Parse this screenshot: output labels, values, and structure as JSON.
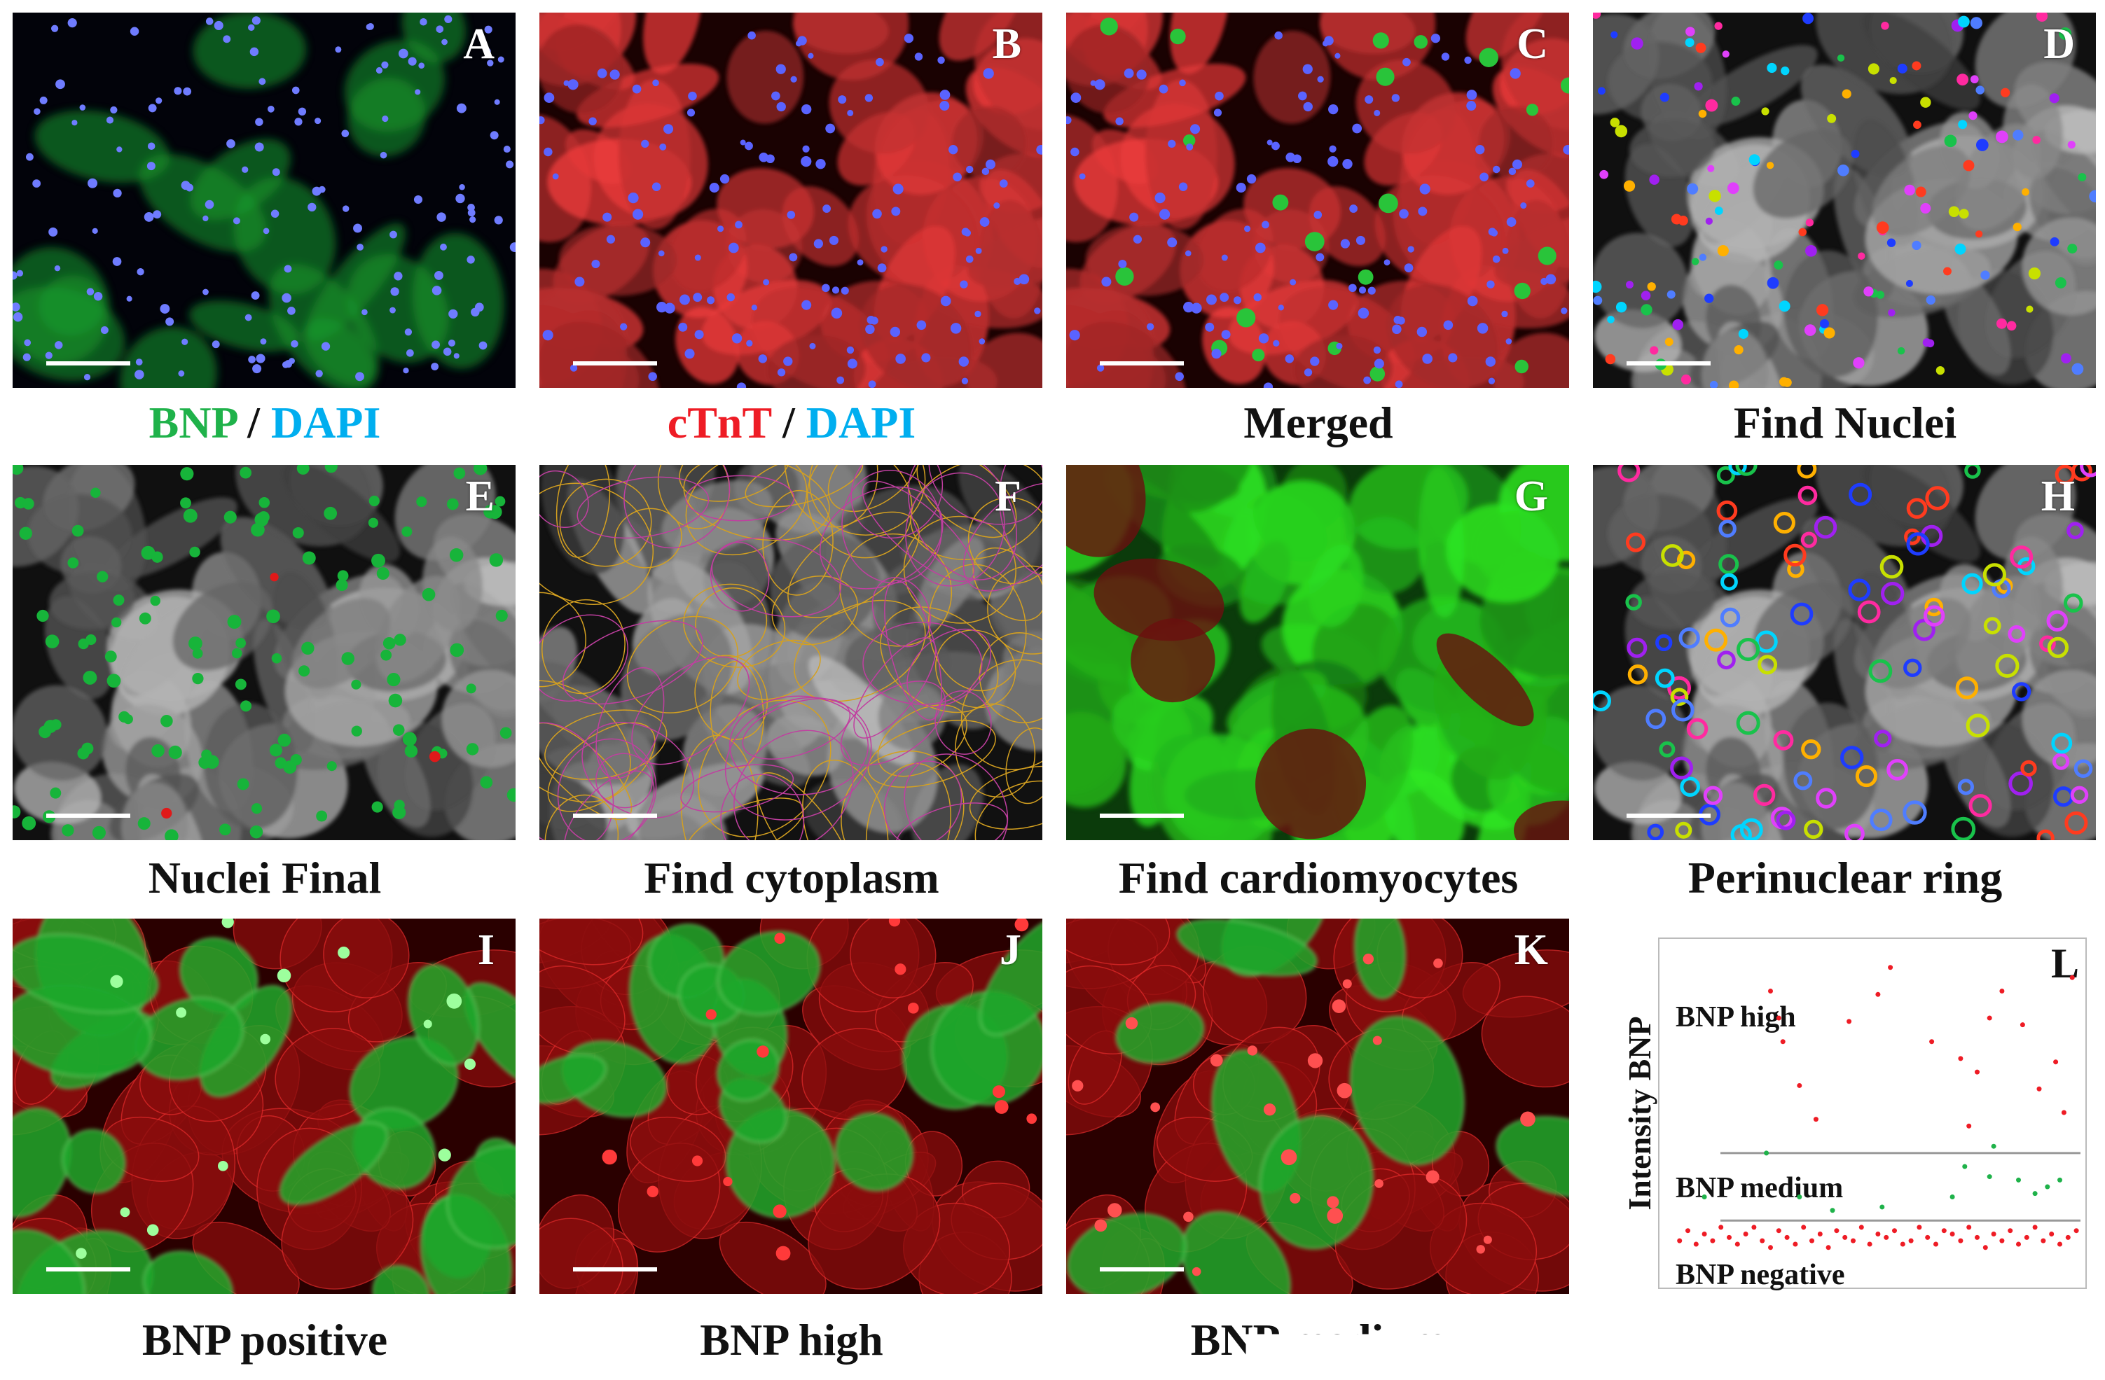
{
  "panels": [
    {
      "letter": "A",
      "caption_parts": [
        {
          "text": "BNP",
          "color": "#1fb24a"
        },
        {
          "text": " / ",
          "color": "#111111"
        },
        {
          "text": "DAPI",
          "color": "#00aeef"
        }
      ],
      "style": "bnp-dapi"
    },
    {
      "letter": "B",
      "caption_parts": [
        {
          "text": "cTnT",
          "color": "#ee1c25"
        },
        {
          "text": " / ",
          "color": "#111111"
        },
        {
          "text": "DAPI",
          "color": "#00aeef"
        }
      ],
      "style": "ctnt-dapi"
    },
    {
      "letter": "C",
      "caption_parts": [
        {
          "text": "Merged",
          "color": "#111111"
        }
      ],
      "style": "merged"
    },
    {
      "letter": "D",
      "caption_parts": [
        {
          "text": "Find Nuclei",
          "color": "#111111"
        }
      ],
      "style": "find-nuclei"
    },
    {
      "letter": "E",
      "caption_parts": [
        {
          "text": "Nuclei Final",
          "color": "#111111"
        }
      ],
      "style": "nuclei-final"
    },
    {
      "letter": "F",
      "caption_parts": [
        {
          "text": "Find cytoplasm",
          "color": "#111111"
        }
      ],
      "style": "find-cytoplasm"
    },
    {
      "letter": "G",
      "caption_parts": [
        {
          "text": "Find cardiomyocytes",
          "color": "#111111"
        }
      ],
      "style": "find-cardiomyocytes"
    },
    {
      "letter": "H",
      "caption_parts": [
        {
          "text": "Perinuclear ring",
          "color": "#111111"
        }
      ],
      "style": "perinuclear-ring"
    },
    {
      "letter": "I",
      "caption_parts": [
        {
          "text": "BNP positive",
          "color": "#111111"
        }
      ],
      "style": "bnp-positive"
    },
    {
      "letter": "J",
      "caption_parts": [
        {
          "text": "BNP high",
          "color": "#111111"
        }
      ],
      "style": "bnp-high"
    },
    {
      "letter": "K",
      "caption_parts": [
        {
          "text": "BNP medium",
          "color": "#111111"
        }
      ],
      "style": "bnp-medium"
    }
  ],
  "plot": {
    "letter": "L",
    "ylabel": "Intensity BNP",
    "labels": {
      "high": "BNP high",
      "medium": "BNP medium",
      "negative": "BNP negative"
    },
    "colors": {
      "high": "#ee1c25",
      "medium": "#1fb24a",
      "negative": "#ee1c25",
      "threshold": "#999999"
    }
  },
  "chart_data": {
    "type": "scatter",
    "ylabel": "Intensity BNP",
    "ylim": [
      0,
      100
    ],
    "xlim": [
      0,
      100
    ],
    "thresholds": [
      18,
      38
    ],
    "series": [
      {
        "name": "BNP high",
        "points": [
          [
            25,
            86
          ],
          [
            27,
            78
          ],
          [
            32,
            58
          ],
          [
            36,
            48
          ],
          [
            28,
            71
          ],
          [
            44,
            77
          ],
          [
            51,
            85
          ],
          [
            54,
            93
          ],
          [
            64,
            71
          ],
          [
            71,
            66
          ],
          [
            75,
            62
          ],
          [
            78,
            78
          ],
          [
            81,
            86
          ],
          [
            86,
            76
          ],
          [
            90,
            57
          ],
          [
            94,
            65
          ],
          [
            96,
            50
          ],
          [
            73,
            46
          ],
          [
            98,
            90
          ]
        ]
      },
      {
        "name": "BNP medium",
        "points": [
          [
            9,
            25
          ],
          [
            24,
            38
          ],
          [
            32,
            25
          ],
          [
            40,
            21
          ],
          [
            52,
            22
          ],
          [
            69,
            25
          ],
          [
            72,
            34
          ],
          [
            78,
            31
          ],
          [
            79,
            40
          ],
          [
            85,
            30
          ],
          [
            89,
            26
          ],
          [
            92,
            28
          ],
          [
            95,
            30
          ]
        ]
      },
      {
        "name": "BNP negative",
        "points": [
          [
            3,
            12
          ],
          [
            5,
            15
          ],
          [
            7,
            11
          ],
          [
            9,
            14
          ],
          [
            11,
            12
          ],
          [
            13,
            16
          ],
          [
            15,
            13
          ],
          [
            17,
            11
          ],
          [
            19,
            14
          ],
          [
            21,
            16
          ],
          [
            23,
            12
          ],
          [
            25,
            10
          ],
          [
            27,
            15
          ],
          [
            29,
            13
          ],
          [
            31,
            11
          ],
          [
            33,
            16
          ],
          [
            35,
            12
          ],
          [
            37,
            14
          ],
          [
            39,
            10
          ],
          [
            41,
            15
          ],
          [
            43,
            13
          ],
          [
            45,
            12
          ],
          [
            47,
            16
          ],
          [
            49,
            11
          ],
          [
            51,
            14
          ],
          [
            53,
            13
          ],
          [
            55,
            15
          ],
          [
            57,
            11
          ],
          [
            59,
            12
          ],
          [
            61,
            16
          ],
          [
            63,
            13
          ],
          [
            65,
            11
          ],
          [
            67,
            15
          ],
          [
            69,
            14
          ],
          [
            71,
            12
          ],
          [
            73,
            16
          ],
          [
            75,
            13
          ],
          [
            77,
            10
          ],
          [
            79,
            14
          ],
          [
            81,
            12
          ],
          [
            83,
            15
          ],
          [
            85,
            11
          ],
          [
            87,
            13
          ],
          [
            89,
            16
          ],
          [
            91,
            12
          ],
          [
            93,
            14
          ],
          [
            95,
            11
          ],
          [
            97,
            13
          ],
          [
            99,
            15
          ]
        ]
      }
    ]
  }
}
